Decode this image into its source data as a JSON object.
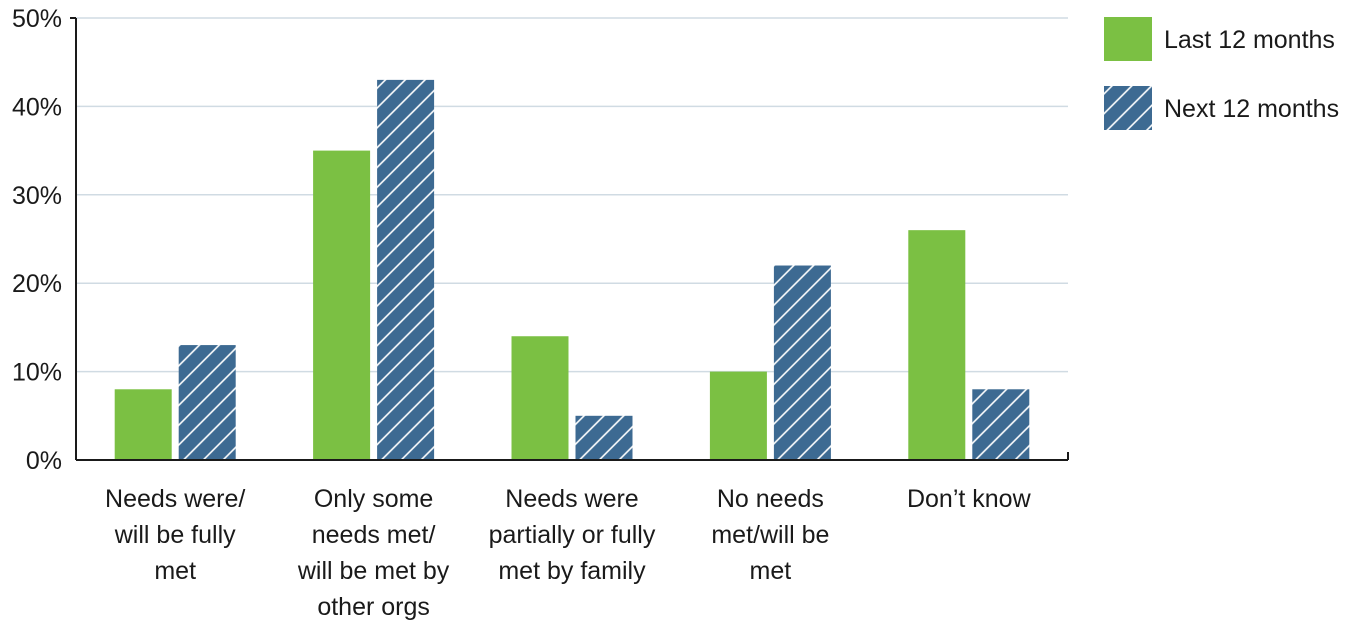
{
  "chart_data": {
    "type": "bar",
    "title": "",
    "xlabel": "",
    "ylabel": "",
    "ylim": [
      0,
      50
    ],
    "yticks": [
      "0%",
      "10%",
      "20%",
      "30%",
      "40%",
      "50%"
    ],
    "ytick_values": [
      0,
      10,
      20,
      30,
      40,
      50
    ],
    "grid": "horizontal",
    "legend_position": "top-right",
    "categories": [
      [
        "Needs were/",
        "will be fully",
        "met"
      ],
      [
        "Only some",
        "needs met/",
        "will be met by",
        "other orgs"
      ],
      [
        "Needs were",
        "partially or fully",
        "met by family"
      ],
      [
        "No needs",
        "met/will be",
        "met"
      ],
      [
        "Don’t know"
      ]
    ],
    "series": [
      {
        "name": "Last 12 months",
        "values": [
          8,
          35,
          14,
          10,
          26
        ],
        "color": "#7bc043",
        "pattern": "solid"
      },
      {
        "name": "Next 12 months",
        "values": [
          13,
          43,
          5,
          22,
          8
        ],
        "color": "#3d6a92",
        "pattern": "hatch"
      }
    ]
  },
  "colors": {
    "gridline": "#d0dbe3",
    "axis": "#1a1a1a",
    "hatch_line": "#ffffff"
  }
}
